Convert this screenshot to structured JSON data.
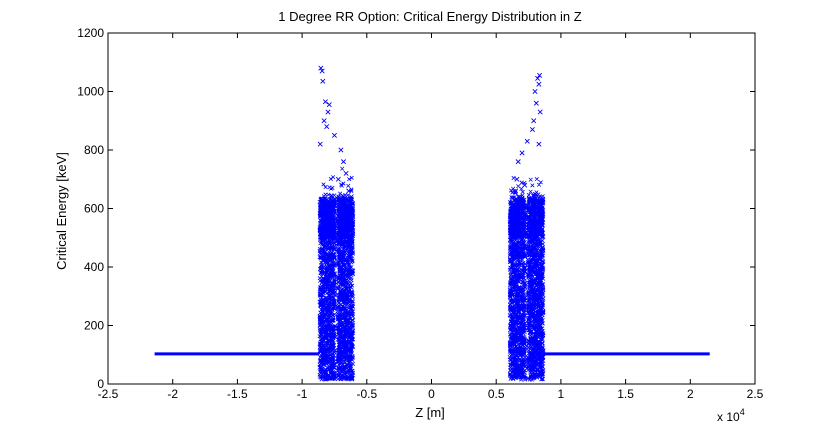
{
  "chart_data": {
    "type": "scatter",
    "title": "1 Degree RR Option: Critical Energy Distribution in Z",
    "xlabel": "Z [m]",
    "ylabel": "Critical Energy [keV]",
    "x_multiplier_label": "x 10",
    "x_multiplier_exponent": "4",
    "xlim": [
      -2.5,
      2.5
    ],
    "ylim": [
      0,
      1200
    ],
    "x_ticks": [
      -2.5,
      -2,
      -1.5,
      -1,
      -0.5,
      0,
      0.5,
      1,
      1.5,
      2,
      2.5
    ],
    "x_tick_labels": [
      "-2.5",
      "-2",
      "-1.5",
      "-1",
      "-0.5",
      "0",
      "0.5",
      "1",
      "1.5",
      "2",
      "2.5"
    ],
    "y_ticks": [
      0,
      200,
      400,
      600,
      800,
      1000,
      1200
    ],
    "y_tick_labels": [
      "0",
      "200",
      "400",
      "600",
      "800",
      "1000",
      "1200"
    ],
    "grid": false,
    "marker": "x",
    "color": "#0000ff",
    "series": [
      {
        "values": [
          {
            "x": -2.14,
            "y": 103
          },
          {
            "x": -0.87,
            "y": 103
          },
          {
            "x": 0.86,
            "y": 103
          },
          {
            "x": 2.15,
            "y": 103
          }
        ]
      },
      {
        "values": [
          {
            "x": -0.855,
            "y": 1080
          },
          {
            "x": -0.845,
            "y": 1070
          },
          {
            "x": -0.84,
            "y": 1035
          },
          {
            "x": -0.82,
            "y": 965
          },
          {
            "x": -0.79,
            "y": 955
          },
          {
            "x": -0.8,
            "y": 930
          },
          {
            "x": -0.83,
            "y": 900
          },
          {
            "x": -0.81,
            "y": 880
          },
          {
            "x": -0.75,
            "y": 850
          },
          {
            "x": -0.7,
            "y": 800
          },
          {
            "x": -0.86,
            "y": 820
          },
          {
            "x": -0.68,
            "y": 760
          },
          {
            "x": -0.66,
            "y": 720
          },
          {
            "x": -0.72,
            "y": 700
          },
          {
            "x": -0.64,
            "y": 660
          },
          {
            "x": -0.62,
            "y": 640
          }
        ]
      },
      {
        "values": [
          {
            "x": 0.835,
            "y": 1055
          },
          {
            "x": 0.82,
            "y": 1045
          },
          {
            "x": 0.83,
            "y": 1025
          },
          {
            "x": 0.8,
            "y": 1000
          },
          {
            "x": 0.81,
            "y": 960
          },
          {
            "x": 0.84,
            "y": 930
          },
          {
            "x": 0.79,
            "y": 900
          },
          {
            "x": 0.78,
            "y": 870
          },
          {
            "x": 0.74,
            "y": 830
          },
          {
            "x": 0.83,
            "y": 820
          },
          {
            "x": 0.7,
            "y": 790
          },
          {
            "x": 0.67,
            "y": 760
          },
          {
            "x": 0.66,
            "y": 700
          },
          {
            "x": 0.65,
            "y": 660
          },
          {
            "x": 0.72,
            "y": 680
          },
          {
            "x": 0.68,
            "y": 640
          }
        ]
      }
    ]
  }
}
